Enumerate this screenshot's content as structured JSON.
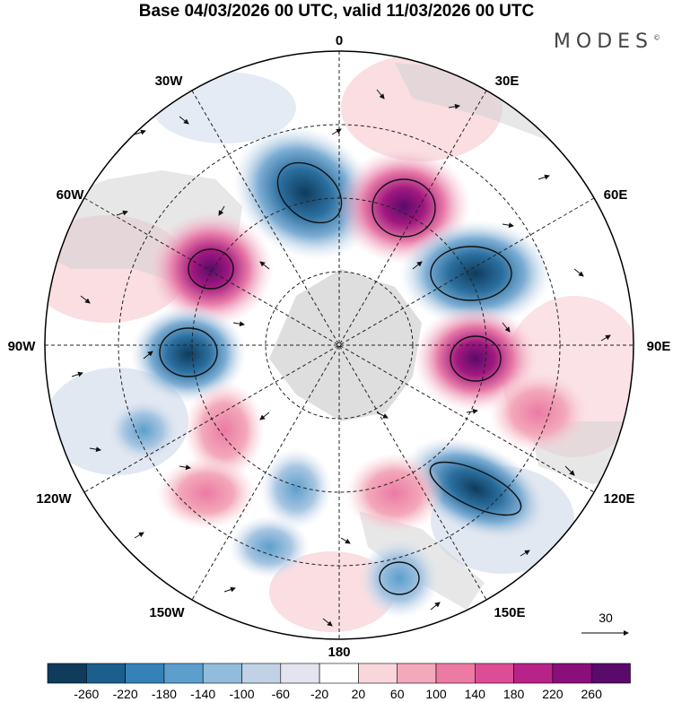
{
  "title": "Base 04/03/2026 00 UTC, valid 11/03/2026 00 UTC",
  "brand": "MODES",
  "brand_mark": "©",
  "lon_labels": {
    "n": "0",
    "ne": "30E",
    "e1": "60E",
    "e": "90E",
    "e2": "120E",
    "se": "150E",
    "s": "180",
    "sw": "150W",
    "w2": "120W",
    "w": "90W",
    "w1": "60W",
    "nw": "30W"
  },
  "vector_ref": "30",
  "colorbar": {
    "labels": [
      "-260",
      "-220",
      "-180",
      "-140",
      "-100",
      "-60",
      "-20",
      "20",
      "60",
      "100",
      "140",
      "180",
      "220",
      "260"
    ],
    "colors": [
      "#0f3b5c",
      "#1c5f8c",
      "#3582b8",
      "#5c9fcc",
      "#92bcdc",
      "#c2d2e6",
      "#e4e4ef",
      "#ffffff",
      "#f9d6db",
      "#f3a9bb",
      "#ec7aa3",
      "#dd4d95",
      "#b8238a",
      "#8a0f7b",
      "#5a0a6b"
    ]
  }
}
